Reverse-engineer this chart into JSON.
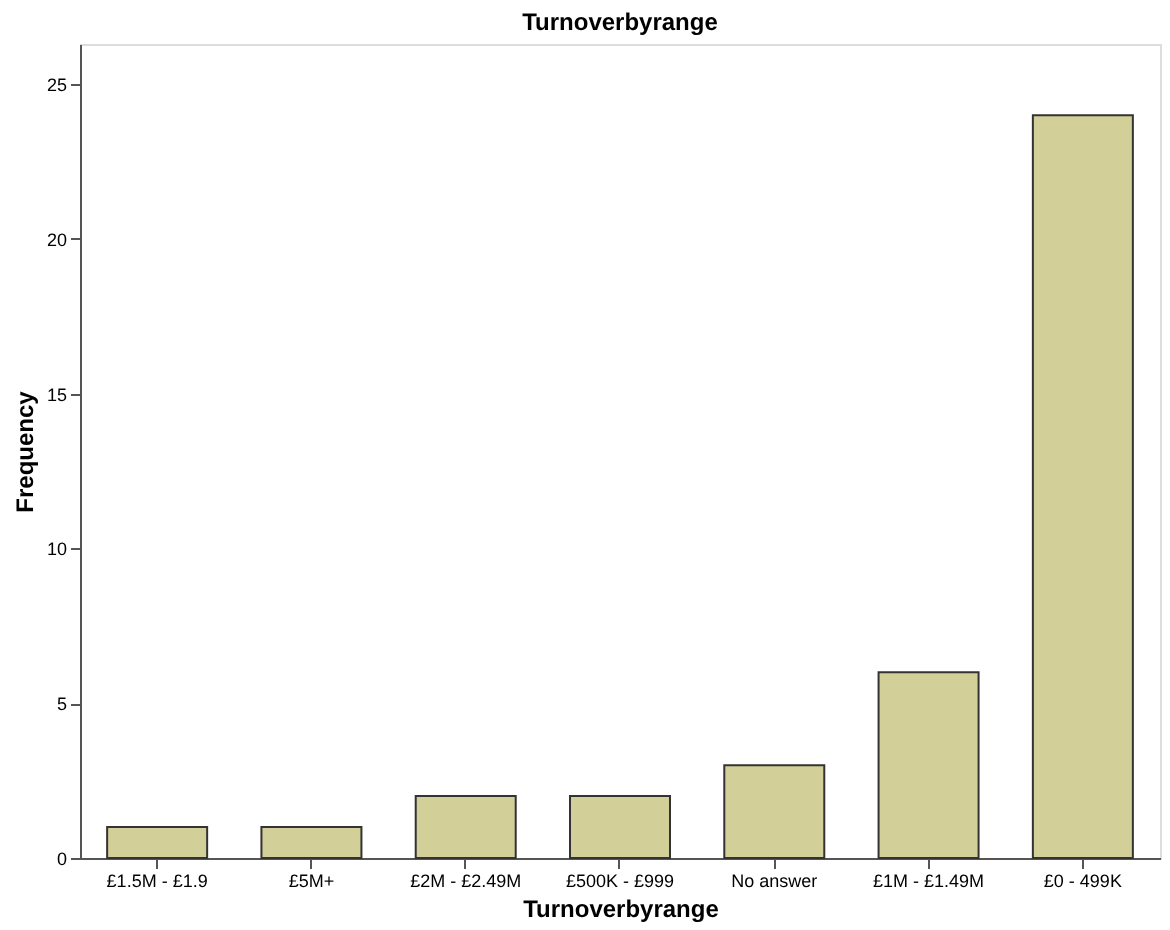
{
  "chart_data": {
    "type": "bar",
    "title": "Turnoverbyrange",
    "xlabel": "Turnoverbyrange",
    "ylabel": "Frequency",
    "categories": [
      "£1.5M - £1.9",
      "£5M+",
      "£2M - £2.49M",
      "£500K - £999",
      "No answer",
      "£1M - £1.49M",
      "£0 - 499K"
    ],
    "values": [
      1,
      1,
      2,
      2,
      3,
      6,
      24
    ],
    "color": "#d3cf98",
    "ylim": [
      0,
      26.3
    ],
    "yticks": [
      0,
      5,
      10,
      15,
      20,
      25
    ],
    "grid": false
  }
}
